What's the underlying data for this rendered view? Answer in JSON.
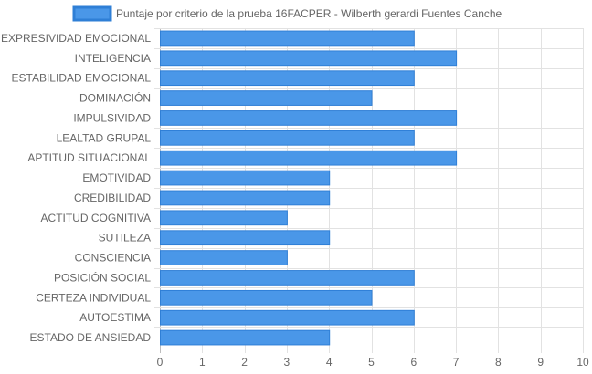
{
  "chart_data": {
    "type": "bar",
    "orientation": "horizontal",
    "categories": [
      "EXPRESIVIDAD EMOCIONAL",
      "INTELIGENCIA",
      "ESTABILIDAD EMOCIONAL",
      "DOMINACIÓN",
      "IMPULSIVIDAD",
      "LEALTAD GRUPAL",
      "APTITUD SITUACIONAL",
      "EMOTIVIDAD",
      "CREDIBILIDAD",
      "ACTITUD COGNITIVA",
      "SUTILEZA",
      "CONSCIENCIA",
      "POSICIÓN SOCIAL",
      "CERTEZA INDIVIDUAL",
      "AUTOESTIMA",
      "ESTADO DE ANSIEDAD"
    ],
    "series": [
      {
        "name": "Puntaje por criterio de la prueba 16FACPER - Wilberth gerardi Fuentes Canche",
        "values": [
          6,
          7,
          6,
          5,
          7,
          6,
          7,
          4,
          4,
          3,
          4,
          3,
          6,
          5,
          6,
          4
        ]
      }
    ],
    "xlim": [
      0,
      10
    ],
    "x_ticks": [
      "0",
      "1",
      "2",
      "3",
      "4",
      "5",
      "6",
      "7",
      "8",
      "9",
      "10"
    ],
    "grid": true,
    "legend_position": "top",
    "colors": {
      "bar_fill": "#4a97e8",
      "bar_border": "#2f7fd6",
      "grid": "#e2e2e2",
      "text": "#666666"
    }
  }
}
